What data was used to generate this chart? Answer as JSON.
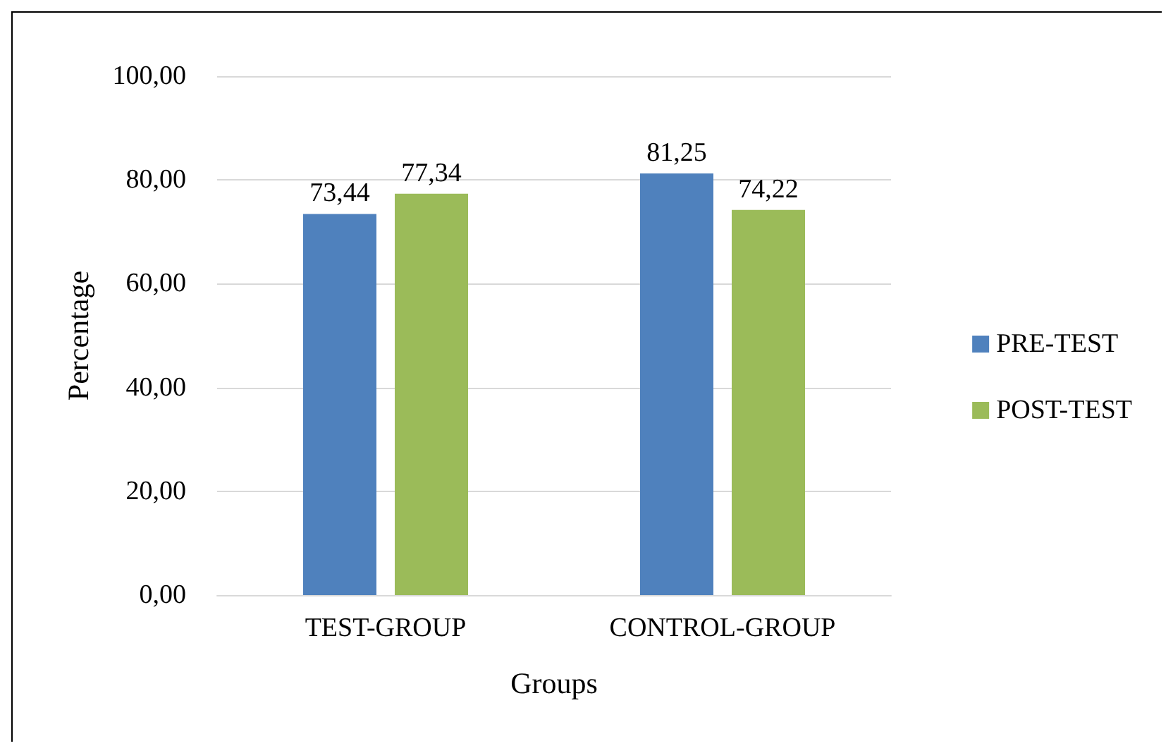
{
  "chart_data": {
    "type": "bar",
    "xlabel": "Groups",
    "ylabel": "Percentage",
    "categories": [
      "TEST-GROUP",
      "CONTROL-GROUP"
    ],
    "series": [
      {
        "name": "PRE-TEST",
        "color": "#4f81bd",
        "values": [
          73.44,
          81.25
        ],
        "value_labels": [
          "73,44",
          "81,25"
        ]
      },
      {
        "name": "POST-TEST",
        "color": "#9bbb59",
        "values": [
          77.34,
          74.22
        ],
        "value_labels": [
          "77,34",
          "74,22"
        ]
      }
    ],
    "ylim": [
      0,
      100
    ],
    "yticks": [
      {
        "value": 0,
        "label": "0,00"
      },
      {
        "value": 20,
        "label": "20,00"
      },
      {
        "value": 40,
        "label": "40,00"
      },
      {
        "value": 60,
        "label": "60,00"
      },
      {
        "value": 80,
        "label": "80,00"
      },
      {
        "value": 100,
        "label": "100,00"
      }
    ],
    "grid": "y",
    "legend": "right"
  }
}
